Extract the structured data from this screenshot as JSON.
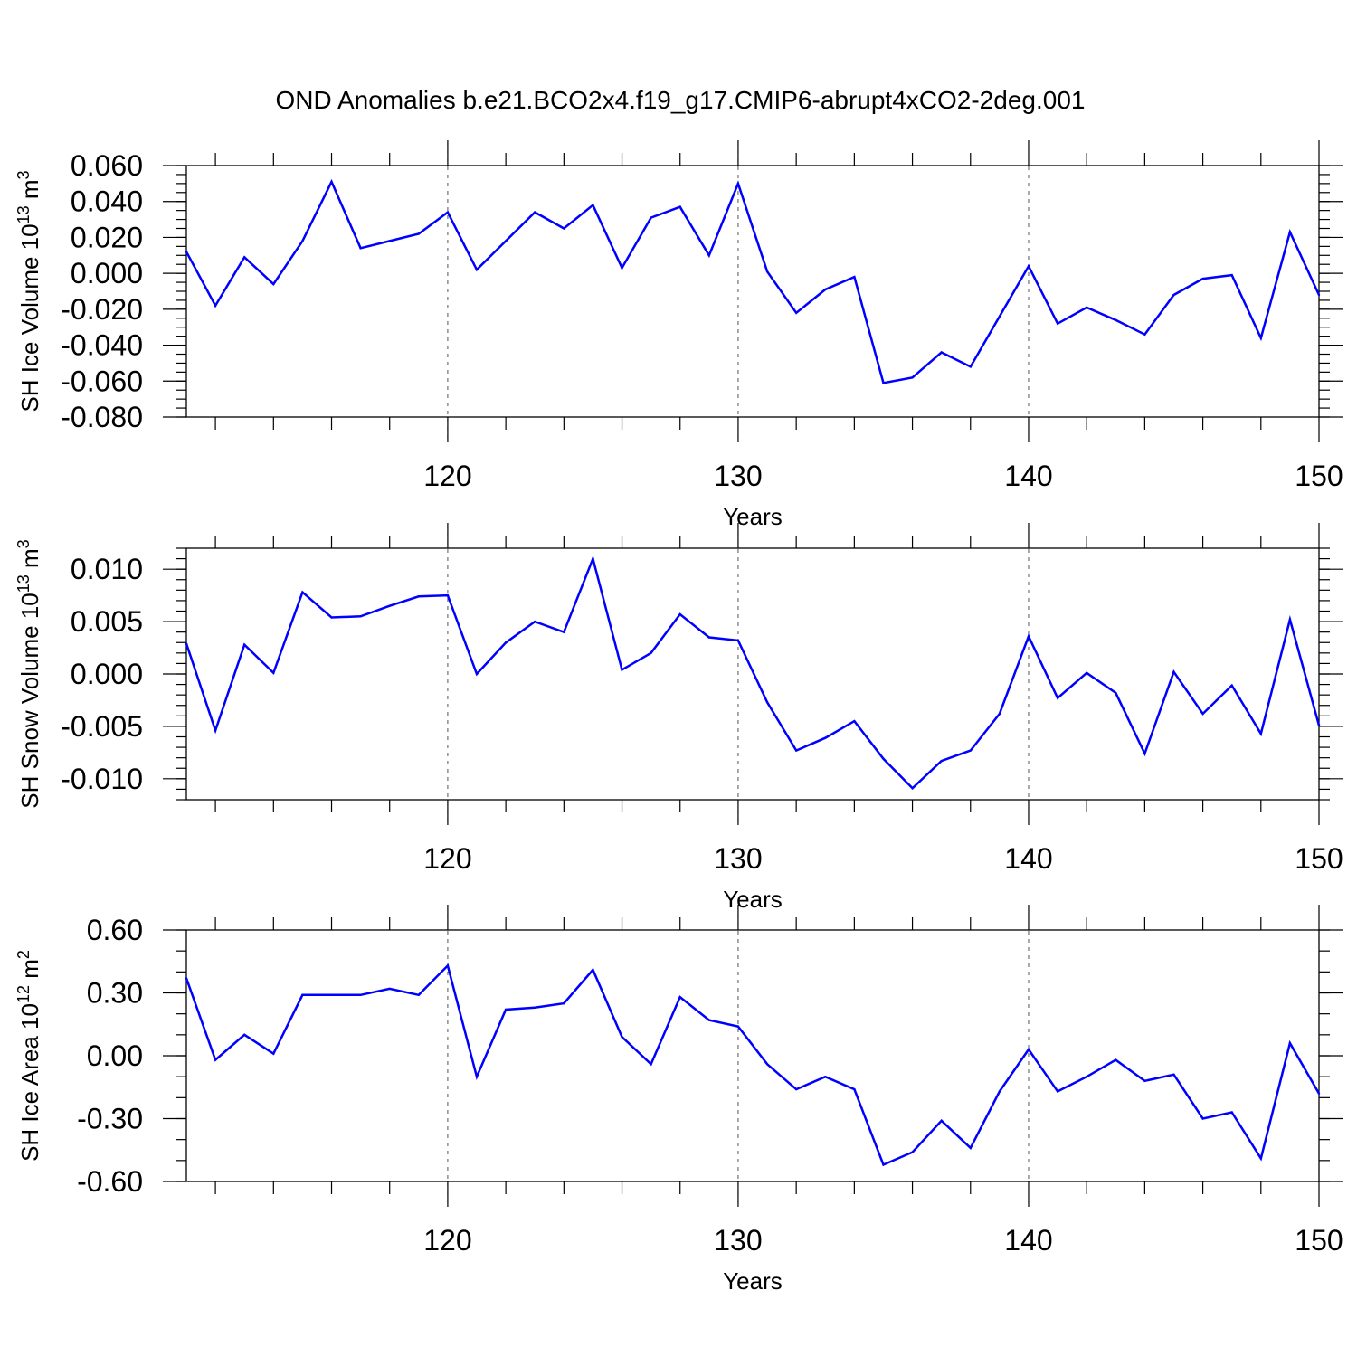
{
  "title": "OND Anomalies b.e21.BCO2x4.f19_g17.CMIP6-abrupt4xCO2-2deg.001",
  "colors": {
    "line": "#0000ff",
    "axis": "#000000",
    "grid": "#555555"
  },
  "chart_data": [
    {
      "type": "line",
      "ylabel": {
        "prefix": "SH Ice Volume 10",
        "exp": "13",
        "unit": " m",
        "unit_exp": "3"
      },
      "xlabel": "Years",
      "xlim": [
        111,
        150
      ],
      "ylim": [
        -0.08,
        0.06
      ],
      "xticks": [
        {
          "value": 120,
          "label": "120"
        },
        {
          "value": 130,
          "label": "130"
        },
        {
          "value": 140,
          "label": "140"
        },
        {
          "value": 150,
          "label": "150"
        }
      ],
      "yticks": [
        {
          "value": 0.06,
          "label": "0.060"
        },
        {
          "value": 0.04,
          "label": "0.040"
        },
        {
          "value": 0.02,
          "label": "0.020"
        },
        {
          "value": 0.0,
          "label": "0.000"
        },
        {
          "value": -0.02,
          "label": "-0.020"
        },
        {
          "value": -0.04,
          "label": "-0.040"
        },
        {
          "value": -0.06,
          "label": "-0.060"
        },
        {
          "value": -0.08,
          "label": "-0.080"
        }
      ],
      "y_minor_step": 0.005,
      "grid_x": [
        120,
        130,
        140
      ],
      "x": [
        111,
        112,
        113,
        114,
        115,
        116,
        117,
        118,
        119,
        120,
        121,
        122,
        123,
        124,
        125,
        126,
        127,
        128,
        129,
        130,
        131,
        132,
        133,
        134,
        135,
        136,
        137,
        138,
        139,
        140,
        141,
        142,
        143,
        144,
        145,
        146,
        147,
        148,
        149,
        150
      ],
      "values": [
        0.012,
        -0.018,
        0.009,
        -0.006,
        0.018,
        0.051,
        0.014,
        0.018,
        0.022,
        0.034,
        0.002,
        0.018,
        0.034,
        0.025,
        0.038,
        0.003,
        0.031,
        0.037,
        0.01,
        0.05,
        0.001,
        -0.022,
        -0.009,
        -0.002,
        -0.061,
        -0.058,
        -0.044,
        -0.052,
        -0.024,
        0.004,
        -0.028,
        -0.019,
        -0.026,
        -0.034,
        -0.012,
        -0.003,
        -0.001,
        -0.036,
        0.023,
        -0.012
      ]
    },
    {
      "type": "line",
      "ylabel": {
        "prefix": "SH Snow Volume 10",
        "exp": "13",
        "unit": " m",
        "unit_exp": "3"
      },
      "xlabel": "Years",
      "xlim": [
        111,
        150
      ],
      "ylim": [
        -0.012,
        0.012
      ],
      "xticks": [
        {
          "value": 120,
          "label": "120"
        },
        {
          "value": 130,
          "label": "130"
        },
        {
          "value": 140,
          "label": "140"
        },
        {
          "value": 150,
          "label": "150"
        }
      ],
      "yticks": [
        {
          "value": 0.01,
          "label": "0.010"
        },
        {
          "value": 0.005,
          "label": "0.005"
        },
        {
          "value": 0.0,
          "label": "0.000"
        },
        {
          "value": -0.005,
          "label": "-0.005"
        },
        {
          "value": -0.01,
          "label": "-0.010"
        }
      ],
      "y_minor_step": 0.001,
      "grid_x": [
        120,
        130,
        140
      ],
      "x": [
        111,
        112,
        113,
        114,
        115,
        116,
        117,
        118,
        119,
        120,
        121,
        122,
        123,
        124,
        125,
        126,
        127,
        128,
        129,
        130,
        131,
        132,
        133,
        134,
        135,
        136,
        137,
        138,
        139,
        140,
        141,
        142,
        143,
        144,
        145,
        146,
        147,
        148,
        149,
        150
      ],
      "values": [
        0.0029,
        -0.0054,
        0.0028,
        0.0001,
        0.0078,
        0.0054,
        0.0055,
        0.0065,
        0.0074,
        0.0075,
        0.0,
        0.003,
        0.005,
        0.004,
        0.011,
        0.0004,
        0.002,
        0.0057,
        0.0035,
        0.0032,
        -0.0027,
        -0.0073,
        -0.0061,
        -0.0045,
        -0.0081,
        -0.0109,
        -0.0083,
        -0.0073,
        -0.0038,
        0.0036,
        -0.0023,
        0.0001,
        -0.0018,
        -0.0076,
        0.0002,
        -0.0038,
        -0.0011,
        -0.0057,
        0.0052,
        -0.0049
      ]
    },
    {
      "type": "line",
      "ylabel": {
        "prefix": "SH Ice Area 10",
        "exp": "12",
        "unit": " m",
        "unit_exp": "2"
      },
      "xlabel": "Years",
      "xlim": [
        111,
        150
      ],
      "ylim": [
        -0.6,
        0.6
      ],
      "xticks": [
        {
          "value": 120,
          "label": "120"
        },
        {
          "value": 130,
          "label": "130"
        },
        {
          "value": 140,
          "label": "140"
        },
        {
          "value": 150,
          "label": "150"
        }
      ],
      "yticks": [
        {
          "value": 0.6,
          "label": "0.60"
        },
        {
          "value": 0.3,
          "label": "0.30"
        },
        {
          "value": 0.0,
          "label": "0.00"
        },
        {
          "value": -0.3,
          "label": "-0.30"
        },
        {
          "value": -0.6,
          "label": "-0.60"
        }
      ],
      "y_minor_step": 0.1,
      "grid_x": [
        120,
        130,
        140
      ],
      "x": [
        111,
        112,
        113,
        114,
        115,
        116,
        117,
        118,
        119,
        120,
        121,
        122,
        123,
        124,
        125,
        126,
        127,
        128,
        129,
        130,
        131,
        132,
        133,
        134,
        135,
        136,
        137,
        138,
        139,
        140,
        141,
        142,
        143,
        144,
        145,
        146,
        147,
        148,
        149,
        150
      ],
      "values": [
        0.37,
        -0.02,
        0.1,
        0.01,
        0.29,
        0.29,
        0.29,
        0.32,
        0.29,
        0.43,
        -0.1,
        0.22,
        0.23,
        0.25,
        0.41,
        0.09,
        -0.04,
        0.28,
        0.17,
        0.14,
        -0.04,
        -0.16,
        -0.1,
        -0.16,
        -0.52,
        -0.46,
        -0.31,
        -0.44,
        -0.17,
        0.03,
        -0.17,
        -0.1,
        -0.02,
        -0.12,
        -0.09,
        -0.3,
        -0.27,
        -0.49,
        0.06,
        -0.18
      ]
    }
  ]
}
